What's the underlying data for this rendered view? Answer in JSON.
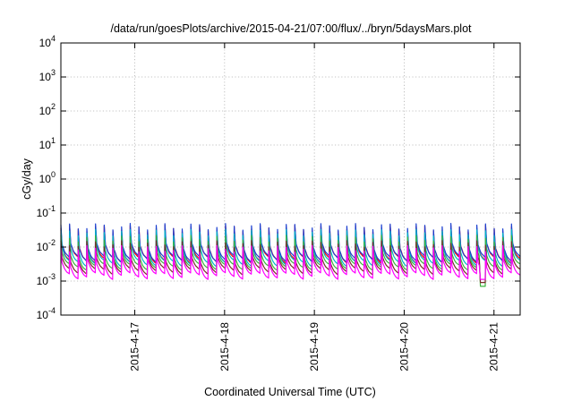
{
  "chart_data": {
    "type": "line",
    "title": "/data/run/goesPlots/archive/2015-04-21/07:00/flux/../bryn/5daysMars.plot",
    "xlabel": "Coordinated Universal Time (UTC)",
    "ylabel": "cGy/day",
    "y_scale": "log",
    "ylim": [
      0.0001,
      10000
    ],
    "xlim": [
      "2015-04-16 04:15",
      "2015-04-21 07:00"
    ],
    "grid": true,
    "legend": "none",
    "y_ticks": [
      {
        "base": "10",
        "exp": "-4"
      },
      {
        "base": "10",
        "exp": "-3"
      },
      {
        "base": "10",
        "exp": "-2"
      },
      {
        "base": "10",
        "exp": "-1"
      },
      {
        "base": "10",
        "exp": "0"
      },
      {
        "base": "10",
        "exp": "1"
      },
      {
        "base": "10",
        "exp": "2"
      },
      {
        "base": "10",
        "exp": "3"
      },
      {
        "base": "10",
        "exp": "4"
      }
    ],
    "x_ticks": [
      "2015-4-17",
      "2015-4-18",
      "2015-4-19",
      "2015-4-20",
      "2015-4-21"
    ],
    "series": [
      {
        "color": "#ff0000",
        "values": [
          0.04,
          0.011,
          0.009,
          0.007,
          0.006,
          0.0055,
          0.005,
          0.0048
        ]
      },
      {
        "color": "#1a3fd0",
        "values": [
          0.045,
          0.012,
          0.0095,
          0.0075,
          0.0065,
          0.006,
          0.0055,
          0.005
        ]
      },
      {
        "color": "#00b4c8",
        "values": [
          0.03,
          0.009,
          0.007,
          0.0055,
          0.0048,
          0.0043,
          0.004,
          0.0038
        ]
      },
      {
        "color": "#3cb43c",
        "values": [
          0.02,
          0.0062,
          0.005,
          0.0041,
          0.0036,
          0.0033,
          0.0031,
          0.003
        ]
      },
      {
        "color": "#7a2a2a",
        "values": [
          0.014,
          0.0045,
          0.0037,
          0.0031,
          0.0027,
          0.0025,
          0.0023,
          0.0022
        ]
      },
      {
        "color": "#ff00ff",
        "values": [
          0.01,
          0.0034,
          0.0028,
          0.0023,
          0.002,
          0.0018,
          0.0017,
          0.0016
        ]
      }
    ],
    "pulse_count": 53,
    "dip_series_index": 3,
    "dip_value": 0.0007
  }
}
